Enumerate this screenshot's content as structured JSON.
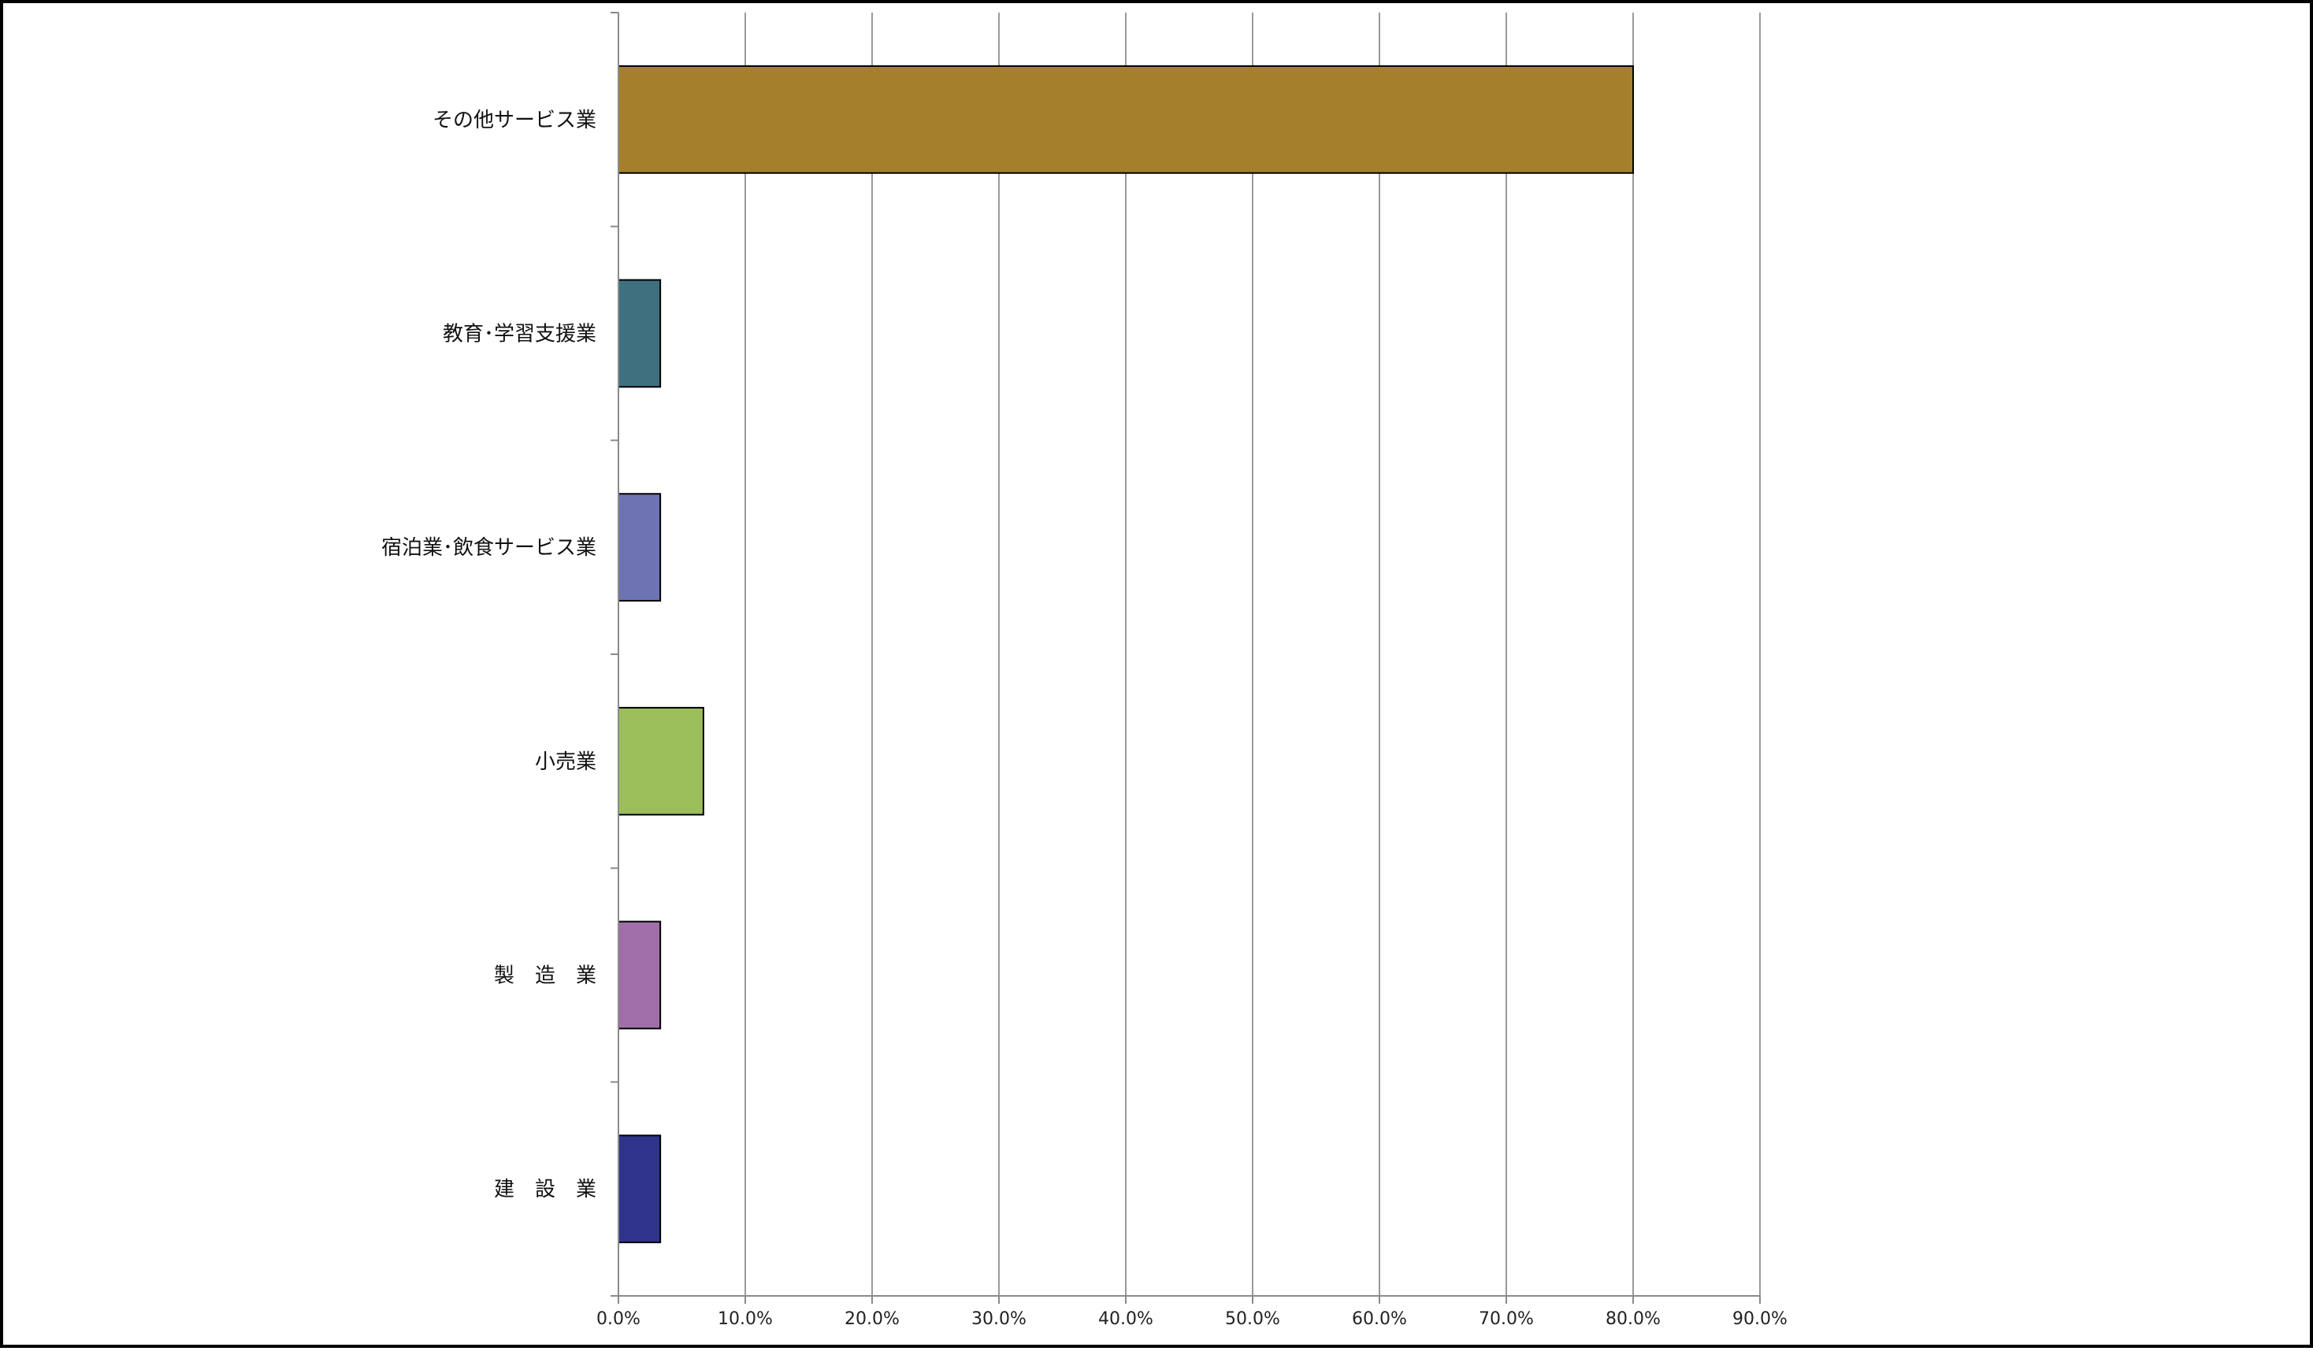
{
  "chart_data": {
    "type": "bar",
    "orientation": "horizontal",
    "categories": [
      "その他サービス業",
      "教育･学習支援業",
      "宿泊業･飲食サービス業",
      "小売業",
      "製　造　業",
      "建　設　業"
    ],
    "values": [
      80.0,
      3.3,
      3.3,
      6.7,
      3.3,
      3.3
    ],
    "colors": [
      "#A67F2C",
      "#3F7080",
      "#6D73B3",
      "#9BBE5A",
      "#A06FAA",
      "#2F338B"
    ],
    "xlim": [
      0,
      90
    ],
    "xticks": [
      "0.0%",
      "10.0%",
      "20.0%",
      "30.0%",
      "40.0%",
      "50.0%",
      "60.0%",
      "70.0%",
      "80.0%",
      "90.0%"
    ],
    "grid": "vertical",
    "title": "",
    "xlabel": "",
    "ylabel": ""
  }
}
